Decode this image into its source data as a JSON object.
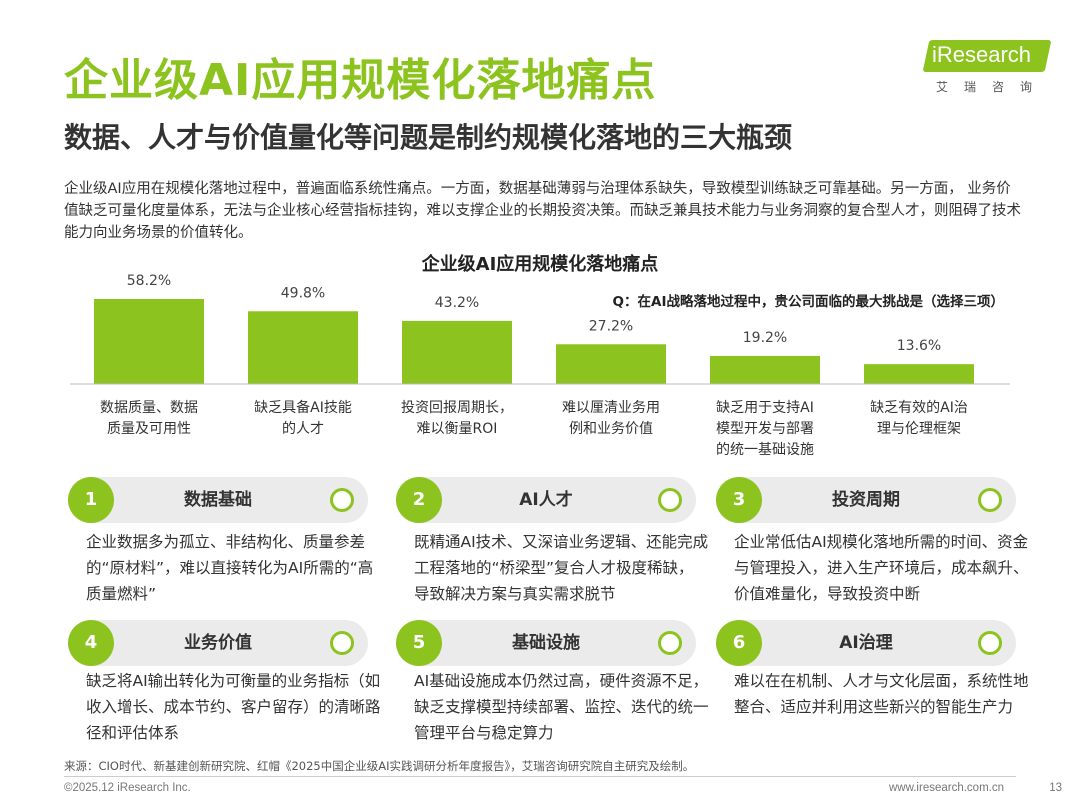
{
  "header": {
    "title": "企业级AI应用规模化落地痛点",
    "subtitle": "数据、人才与价值量化等问题是制约规模化落地的三大瓶颈"
  },
  "logo": {
    "brand": "iResearch",
    "sub": "艾瑞咨询"
  },
  "intro": "企业级AI应用在规模化落地过程中，普遍面临系统性痛点。一方面，数据基础薄弱与治理体系缺失，导致模型训练缺乏可靠基础。另一方面， 业务价值缺乏可量化度量体系，无法与企业核心经营指标挂钩，难以支撑企业的长期投资决策。而缺乏兼具技术能力与业务洞察的复合型人才，则阻碍了技术能力向业务场景的价值转化。",
  "chart_data": {
    "type": "bar",
    "title": "企业级AI应用规模化落地痛点",
    "question": "Q：在AI战略落地过程中，贵公司面临的最大挑战是（选择三项）",
    "categories": [
      "数据质量、数据质量及可用性",
      "缺乏具备AI技能的人才",
      "投资回报周期长，难以衡量ROI",
      "难以厘清业务用例和业务价值",
      "缺乏用于支持AI模型开发与部署的统一基础设施",
      "缺乏有效的AI治理与伦理框架"
    ],
    "category_lines": [
      [
        "数据质量、数据",
        "质量及可用性"
      ],
      [
        "缺乏具备AI技能",
        "的人才"
      ],
      [
        "投资回报周期长，",
        "难以衡量ROI"
      ],
      [
        "难以厘清业务用",
        "例和业务价值"
      ],
      [
        "缺乏用于支持AI",
        "模型开发与部署",
        "的统一基础设施"
      ],
      [
        "缺乏有效的AI治",
        "理与伦理框架"
      ]
    ],
    "values": [
      58.2,
      49.8,
      43.2,
      27.2,
      19.2,
      13.6
    ],
    "value_labels": [
      "58.2%",
      "49.8%",
      "43.2%",
      "27.2%",
      "19.2%",
      "13.6%"
    ],
    "unit": "%",
    "ylim": [
      0,
      100
    ],
    "grid": false,
    "bar_color": "#8CC31E"
  },
  "cards": [
    {
      "num": "1",
      "title": "数据基础",
      "desc": "企业数据多为孤立、非结构化、质量参差的“原材料”，难以直接转化为AI所需的“高质量燃料”"
    },
    {
      "num": "2",
      "title": "AI人才",
      "desc": "既精通AI技术、又深谙业务逻辑、还能完成工程落地的“桥梁型”复合人才极度稀缺，导致解决方案与真实需求脱节"
    },
    {
      "num": "3",
      "title": "投资周期",
      "desc": "企业常低估AI规模化落地所需的时间、资金与管理投入，进入生产环境后，成本飙升、价值难量化，导致投资中断"
    },
    {
      "num": "4",
      "title": "业务价值",
      "desc": "缺乏将AI输出转化为可衡量的业务指标（如收入增长、成本节约、客户留存）的清晰路径和评估体系"
    },
    {
      "num": "5",
      "title": "基础设施",
      "desc": "AI基础设施成本仍然过高，硬件资源不足，缺乏支撑模型持续部署、监控、迭代的统一管理平台与稳定算力"
    },
    {
      "num": "6",
      "title": "AI治理",
      "desc": "难以在在机制、人才与文化层面，系统性地整合、适应并利用这些新兴的智能生产力"
    }
  ],
  "footer": {
    "source": "来源：CIO时代、新基建创新研究院、红帽《2025中国企业级AI实践调研分析年度报告》，艾瑞咨询研究院自主研究及绘制。",
    "copyright": "©2025.12 iResearch Inc.",
    "site": "www.iresearch.com.cn",
    "page": "13"
  },
  "colors": {
    "accent": "#8CC31E",
    "pill_bg": "#EBEBEB",
    "text": "#333333"
  }
}
